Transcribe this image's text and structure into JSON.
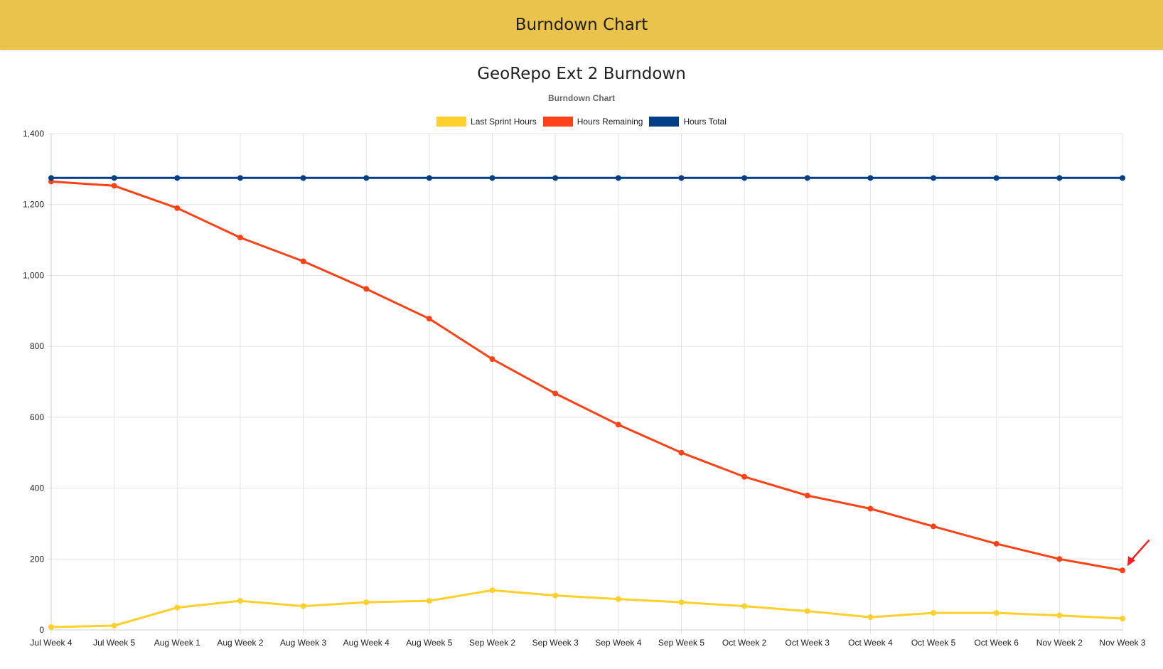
{
  "header": {
    "title": "Burndown Chart"
  },
  "colors": {
    "header_bg": "#eac34c",
    "last_sprint": "#fdd02b",
    "remaining": "#fc4216",
    "total": "#003f87",
    "annotation_arrow": "#ff1c1c"
  },
  "chart_data": {
    "type": "line",
    "title": "GeoRepo Ext 2 Burndown",
    "subtitle": "Burndown Chart",
    "xlabel": "",
    "ylabel": "",
    "ylim": [
      0,
      1400
    ],
    "yticks": [
      0,
      200,
      400,
      600,
      800,
      1000,
      1200,
      1400
    ],
    "ytick_labels": [
      "0",
      "200",
      "400",
      "600",
      "800",
      "1,000",
      "1,200",
      "1,400"
    ],
    "grid": true,
    "legend_position": "top",
    "categories": [
      "Jul Week 4",
      "Jul Week 5",
      "Aug Week 1",
      "Aug Week 2",
      "Aug Week 3",
      "Aug Week 4",
      "Aug Week 5",
      "Sep Week 2",
      "Sep Week 3",
      "Sep Week 4",
      "Sep Week 5",
      "Oct Week 2",
      "Oct Week 3",
      "Oct Week 4",
      "Oct Week 5",
      "Oct Week 6",
      "Nov Week 2",
      "Nov Week 3"
    ],
    "series": [
      {
        "name": "Last Sprint Hours",
        "color": "#fdd02b",
        "values": [
          8,
          12,
          63,
          82,
          67,
          78,
          82,
          112,
          97,
          87,
          78,
          67,
          53,
          36,
          48,
          48,
          41,
          32
        ]
      },
      {
        "name": "Hours Remaining",
        "color": "#fc4216",
        "values": [
          1265,
          1253,
          1190,
          1107,
          1040,
          962,
          878,
          764,
          667,
          579,
          500,
          432,
          379,
          342,
          292,
          243,
          200,
          168
        ]
      },
      {
        "name": "Hours Total",
        "color": "#003f87",
        "values": [
          1275,
          1275,
          1275,
          1275,
          1275,
          1275,
          1275,
          1275,
          1275,
          1275,
          1275,
          1275,
          1275,
          1275,
          1275,
          1275,
          1275,
          1275
        ]
      }
    ]
  }
}
